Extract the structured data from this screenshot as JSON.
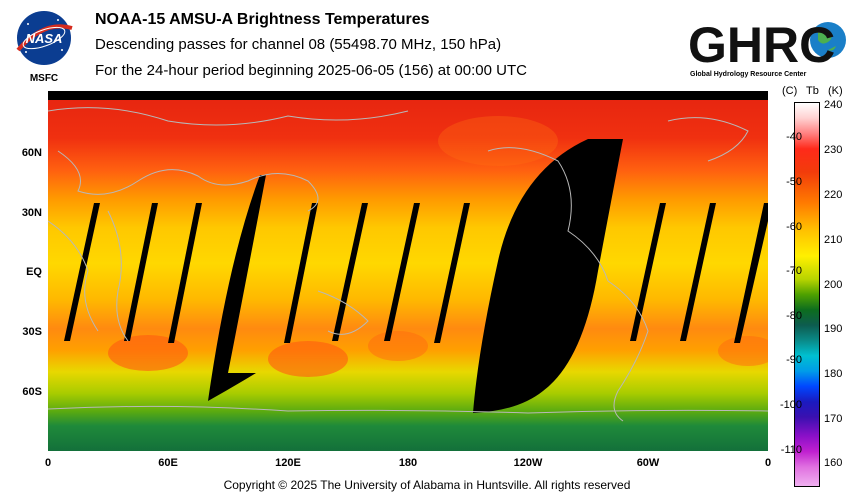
{
  "header": {
    "title": "NOAA-15 AMSU-A Brightness Temperatures",
    "subtitle_1": "Descending passes for channel 08 (55498.70 MHz, 150 hPa)",
    "subtitle_2": "For the 24-hour period beginning 2025-06-05 (156) at 00:00 UTC"
  },
  "logos": {
    "nasa_text": "NASA",
    "msfc_text": "MSFC",
    "ghrc_text": "GHRC",
    "ghrc_subtext": "Global Hydrology Resource Center"
  },
  "map": {
    "lat_labels": [
      "60N",
      "30N",
      "EQ",
      "30S",
      "60S"
    ],
    "lon_labels": [
      "0",
      "60E",
      "120E",
      "180",
      "120W",
      "60W",
      "0"
    ],
    "colors": {
      "polar": "#f02a10",
      "mid": "#ff8a00",
      "tropics": "#ffd400",
      "south_mid": "#ff6a10",
      "south_high": "#a8cc00",
      "antarctic": "#1f8a3a",
      "gap": "#000000"
    }
  },
  "colorbar": {
    "head_c": "(C)",
    "head_tb": "Tb",
    "head_k": "(K)",
    "kelvin_ticks": [
      "240",
      "230",
      "220",
      "210",
      "200",
      "190",
      "180",
      "170",
      "160"
    ],
    "celsius_ticks": [
      "-40",
      "-50",
      "-60",
      "-70",
      "-80",
      "-90",
      "-100",
      "-110"
    ]
  },
  "footer": {
    "copyright": "Copyright © 2025 The University of Alabama in Huntsville.  All rights reserved"
  }
}
